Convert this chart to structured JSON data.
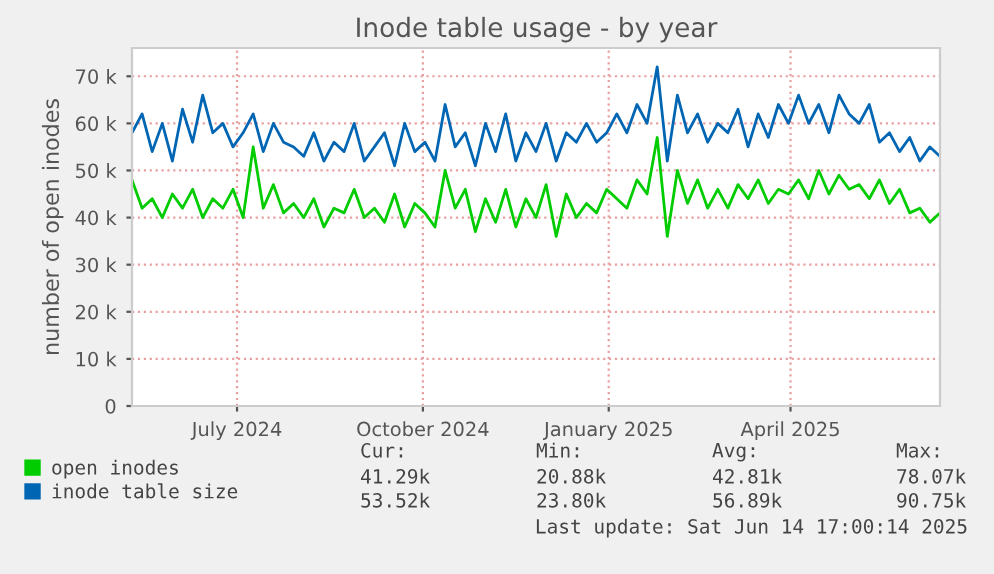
{
  "chart_data": {
    "type": "line",
    "title": "Inode table usage - by year",
    "ylabel": "number of open inodes",
    "x": [
      "2024-05-10",
      "2024-05-15",
      "2024-05-20",
      "2024-05-25",
      "2024-05-30",
      "2024-06-04",
      "2024-06-09",
      "2024-06-14",
      "2024-06-19",
      "2024-06-24",
      "2024-06-29",
      "2024-07-04",
      "2024-07-09",
      "2024-07-14",
      "2024-07-19",
      "2024-07-24",
      "2024-07-29",
      "2024-08-03",
      "2024-08-08",
      "2024-08-13",
      "2024-08-18",
      "2024-08-23",
      "2024-08-28",
      "2024-09-02",
      "2024-09-07",
      "2024-09-12",
      "2024-09-17",
      "2024-09-22",
      "2024-09-27",
      "2024-10-02",
      "2024-10-07",
      "2024-10-12",
      "2024-10-17",
      "2024-10-22",
      "2024-10-27",
      "2024-11-01",
      "2024-11-06",
      "2024-11-11",
      "2024-11-16",
      "2024-11-21",
      "2024-11-26",
      "2024-12-01",
      "2024-12-06",
      "2024-12-11",
      "2024-12-16",
      "2024-12-21",
      "2024-12-26",
      "2024-12-31",
      "2025-01-05",
      "2025-01-10",
      "2025-01-15",
      "2025-01-20",
      "2025-01-25",
      "2025-01-30",
      "2025-02-04",
      "2025-02-09",
      "2025-02-14",
      "2025-02-19",
      "2025-02-24",
      "2025-03-01",
      "2025-03-06",
      "2025-03-11",
      "2025-03-16",
      "2025-03-21",
      "2025-03-26",
      "2025-03-31",
      "2025-04-05",
      "2025-04-10",
      "2025-04-15",
      "2025-04-20",
      "2025-04-25",
      "2025-04-30",
      "2025-05-05",
      "2025-05-10",
      "2025-05-15",
      "2025-05-20",
      "2025-05-25",
      "2025-05-30",
      "2025-06-04",
      "2025-06-09",
      "2025-06-14"
    ],
    "series": [
      {
        "name": "open inodes",
        "color": "#00cc00",
        "values": [
          48000,
          42000,
          44000,
          40000,
          45000,
          42000,
          46000,
          40000,
          44000,
          42000,
          46000,
          40000,
          55000,
          42000,
          47000,
          41000,
          43000,
          40000,
          44000,
          38000,
          42000,
          41000,
          46000,
          40000,
          42000,
          39000,
          45000,
          38000,
          43000,
          41000,
          38000,
          50000,
          42000,
          46000,
          37000,
          44000,
          39000,
          46000,
          38000,
          44000,
          40000,
          47000,
          36000,
          45000,
          40000,
          43000,
          41000,
          46000,
          44000,
          42000,
          48000,
          45000,
          57000,
          36000,
          50000,
          43000,
          48000,
          42000,
          46000,
          42000,
          47000,
          44000,
          48000,
          43000,
          46000,
          45000,
          48000,
          44000,
          50000,
          45000,
          49000,
          46000,
          47000,
          44000,
          48000,
          43000,
          46000,
          41000,
          42000,
          39000,
          41000
        ]
      },
      {
        "name": "inode table size",
        "color": "#0066b3",
        "values": [
          58000,
          62000,
          54000,
          60000,
          52000,
          63000,
          56000,
          66000,
          58000,
          60000,
          55000,
          58000,
          62000,
          54000,
          60000,
          56000,
          55000,
          53000,
          58000,
          52000,
          56000,
          54000,
          60000,
          52000,
          55000,
          58000,
          51000,
          60000,
          54000,
          56000,
          52000,
          64000,
          55000,
          58000,
          51000,
          60000,
          54000,
          62000,
          52000,
          58000,
          54000,
          60000,
          52000,
          58000,
          56000,
          60000,
          56000,
          58000,
          62000,
          58000,
          64000,
          60000,
          72000,
          52000,
          66000,
          58000,
          62000,
          56000,
          60000,
          58000,
          63000,
          55000,
          62000,
          57000,
          64000,
          60000,
          66000,
          60000,
          64000,
          58000,
          66000,
          62000,
          60000,
          64000,
          56000,
          58000,
          54000,
          57000,
          52000,
          55000,
          53000
        ]
      }
    ],
    "xlim": [
      "2024-05-10",
      "2025-06-14"
    ],
    "xticks": [
      {
        "value": "2024-07-01",
        "label": "July 2024"
      },
      {
        "value": "2024-10-01",
        "label": "October 2024"
      },
      {
        "value": "2025-01-01",
        "label": "January 2025"
      },
      {
        "value": "2025-04-01",
        "label": "April 2025"
      }
    ],
    "ylim": [
      0,
      76000
    ],
    "yticks": [
      0,
      {
        "value": 10000,
        "label": "10 k"
      },
      {
        "value": 20000,
        "label": "20 k"
      },
      {
        "value": 30000,
        "label": "30 k"
      },
      {
        "value": 40000,
        "label": "40 k"
      },
      {
        "value": 50000,
        "label": "50 k"
      },
      {
        "value": 60000,
        "label": "60 k"
      },
      {
        "value": 70000,
        "label": "70 k"
      }
    ],
    "grid": true,
    "legend": "bottom left",
    "annotations": [
      "Cur:",
      "Min:",
      "Avg:",
      "Max:",
      "41.29k",
      "20.88k",
      "42.81k",
      "78.07k",
      "53.52k",
      "23.80k",
      "56.89k",
      "90.75k",
      "Last update: Sat Jun 14 17:00:14 2025"
    ]
  }
}
